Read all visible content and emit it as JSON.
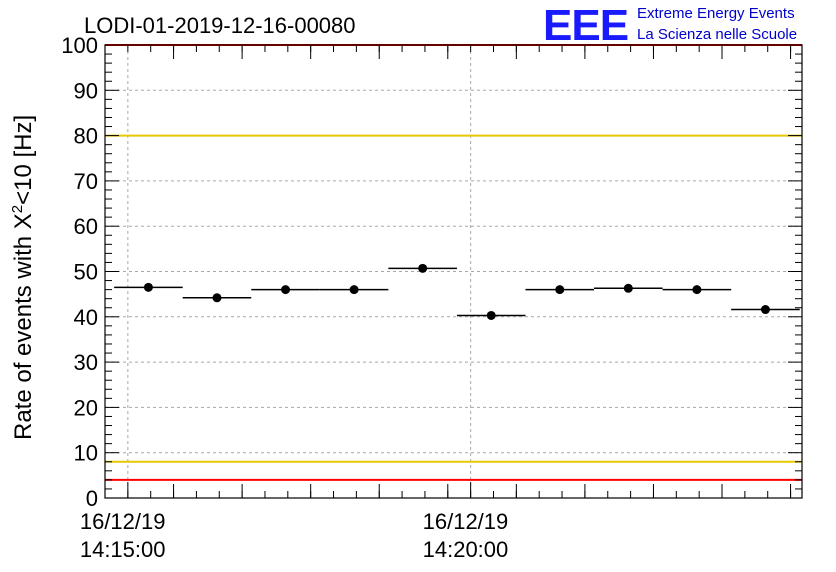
{
  "header": {
    "run_title": "LODI-01-2019-12-16-00080",
    "logo_text": "EEE",
    "logo_line1": "Extreme Energy Events",
    "logo_line2": "La Scienza nelle Scuole"
  },
  "chart_data": {
    "type": "scatter",
    "title": "LODI-01-2019-12-16-00080",
    "ylabel_main": "Rate of events with X",
    "ylabel_sup": "2",
    "ylabel_tail": "<10 [Hz]",
    "xlabel": "",
    "ylim": [
      0,
      100
    ],
    "y_ticks": [
      0,
      10,
      20,
      30,
      40,
      50,
      60,
      70,
      80,
      90,
      100
    ],
    "x_range_seconds": [
      -20,
      590
    ],
    "x_tick_labels": [
      {
        "t": 0,
        "date": "16/12/19",
        "time": "14:15:00"
      },
      {
        "t": 300,
        "date": "16/12/19",
        "time": "14:20:00"
      }
    ],
    "grid": true,
    "points": [
      {
        "t": 18,
        "half_width": 30,
        "y": 46.5
      },
      {
        "t": 78,
        "half_width": 30,
        "y": 44.2
      },
      {
        "t": 138,
        "half_width": 30,
        "y": 46.0
      },
      {
        "t": 198,
        "half_width": 30,
        "y": 46.0
      },
      {
        "t": 258,
        "half_width": 30,
        "y": 50.7
      },
      {
        "t": 318,
        "half_width": 30,
        "y": 40.3
      },
      {
        "t": 378,
        "half_width": 30,
        "y": 46.0
      },
      {
        "t": 438,
        "half_width": 30,
        "y": 46.3
      },
      {
        "t": 498,
        "half_width": 30,
        "y": 46.0
      },
      {
        "t": 558,
        "half_width": 30,
        "y": 41.6
      }
    ],
    "reference_lines": [
      {
        "y": 100,
        "color": "#ff0000"
      },
      {
        "y": 80,
        "color": "#e8c800"
      },
      {
        "y": 8,
        "color": "#e8c800"
      },
      {
        "y": 4,
        "color": "#ff0000"
      }
    ],
    "marker_color": "#000000"
  }
}
